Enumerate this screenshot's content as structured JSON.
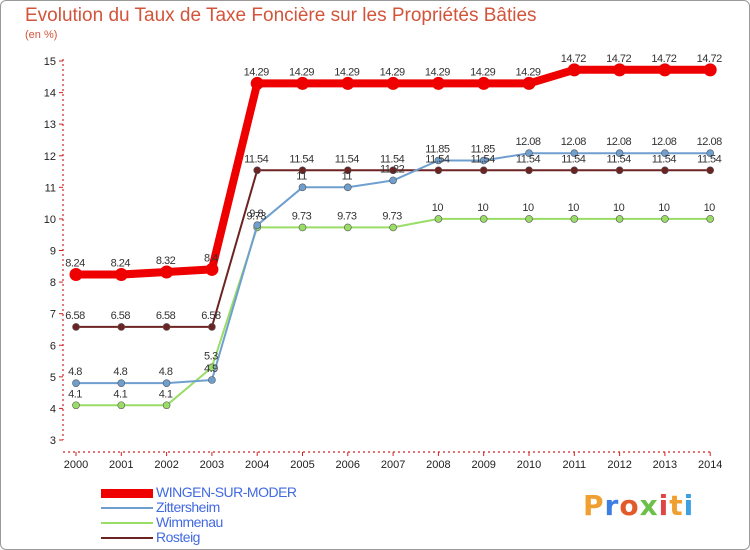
{
  "title": "Evolution du Taux de Taxe Foncière sur les Propriétés Bâties",
  "subtitle": "(en %)",
  "logo": "Proxiti",
  "chart_data": {
    "type": "line",
    "title": "Evolution du Taux de Taxe Foncière sur les Propriétés Bâties",
    "ylabel": "(en %)",
    "xlabel": "",
    "ylim": [
      3,
      15
    ],
    "yticks": [
      3,
      4,
      5,
      6,
      7,
      8,
      9,
      10,
      11,
      12,
      13,
      14,
      15
    ],
    "grid": false,
    "legend_position": "bottom-left",
    "x": [
      "2000",
      "2001",
      "2002",
      "2003",
      "2004",
      "2005",
      "2006",
      "2007",
      "2008",
      "2009",
      "2010",
      "2011",
      "2012",
      "2013",
      "2014"
    ],
    "series": [
      {
        "name": "Rosteig",
        "color": "#6e2323",
        "width": 2,
        "marker": 3.5,
        "values": [
          6.58,
          6.58,
          6.58,
          6.58,
          11.54,
          11.54,
          11.54,
          11.54,
          11.54,
          11.54,
          11.54,
          11.54,
          11.54,
          11.54,
          11.54
        ],
        "labels": [
          "6.58",
          "6.58",
          "6.58",
          "6.58",
          "11.54",
          "11.54",
          "11.54",
          "11.54",
          "11.54",
          "11.54",
          "11.54",
          "11.54",
          "11.54",
          "11.54",
          "11.54"
        ]
      },
      {
        "name": "Wimmenau",
        "color": "#99dd66",
        "width": 2,
        "marker": 3.5,
        "values": [
          4.1,
          4.1,
          4.1,
          5.3,
          9.73,
          9.73,
          9.73,
          9.73,
          10,
          10,
          10,
          10,
          10,
          10,
          10
        ],
        "labels": [
          "4.1",
          "4.1",
          "4.1",
          "5.3",
          "9.73",
          "9.73",
          "9.73",
          "9.73",
          "10",
          "10",
          "10",
          "10",
          "10",
          "10",
          "10"
        ]
      },
      {
        "name": "Zittersheim",
        "color": "#6f9fcf",
        "width": 2,
        "marker": 3.5,
        "values": [
          4.8,
          4.8,
          4.8,
          4.9,
          9.8,
          11,
          11,
          11.22,
          11.85,
          11.85,
          12.08,
          12.08,
          12.08,
          12.08,
          12.08
        ],
        "labels": [
          "4.8",
          "4.8",
          "4.8",
          "4.9",
          "9.8",
          "11",
          "11",
          "11.22",
          "11.85",
          "11.85",
          "12.08",
          "12.08",
          "12.08",
          "12.08",
          "12.08"
        ]
      },
      {
        "name": "WINGEN-SUR-MODER",
        "color": "#ee0000",
        "width": 8,
        "marker": 6.5,
        "values": [
          8.24,
          8.24,
          8.32,
          8.4,
          14.29,
          14.29,
          14.29,
          14.29,
          14.29,
          14.29,
          14.29,
          14.72,
          14.72,
          14.72,
          14.72
        ],
        "labels": [
          "8.24",
          "8.24",
          "8.32",
          "8.4",
          "14.29",
          "14.29",
          "14.29",
          "14.29",
          "14.29",
          "14.29",
          "14.29",
          "14.72",
          "14.72",
          "14.72",
          "14.72"
        ]
      }
    ]
  },
  "legend": [
    {
      "name": "WINGEN-SUR-MODER",
      "color": "#ee0000",
      "text_color": "#4169e1"
    },
    {
      "name": "Zittersheim",
      "color": "#6f9fcf",
      "text_color": "#4169e1"
    },
    {
      "name": "Wimmenau",
      "color": "#99dd66",
      "text_color": "#4169e1"
    },
    {
      "name": "Rosteig",
      "color": "#6e2323",
      "text_color": "#4169e1"
    }
  ],
  "logo_colors": [
    "#f0a030",
    "#3d7ee0",
    "#e25a2a",
    "#6cc04a",
    "#e04545",
    "#f0a030",
    "#3da0e0"
  ]
}
